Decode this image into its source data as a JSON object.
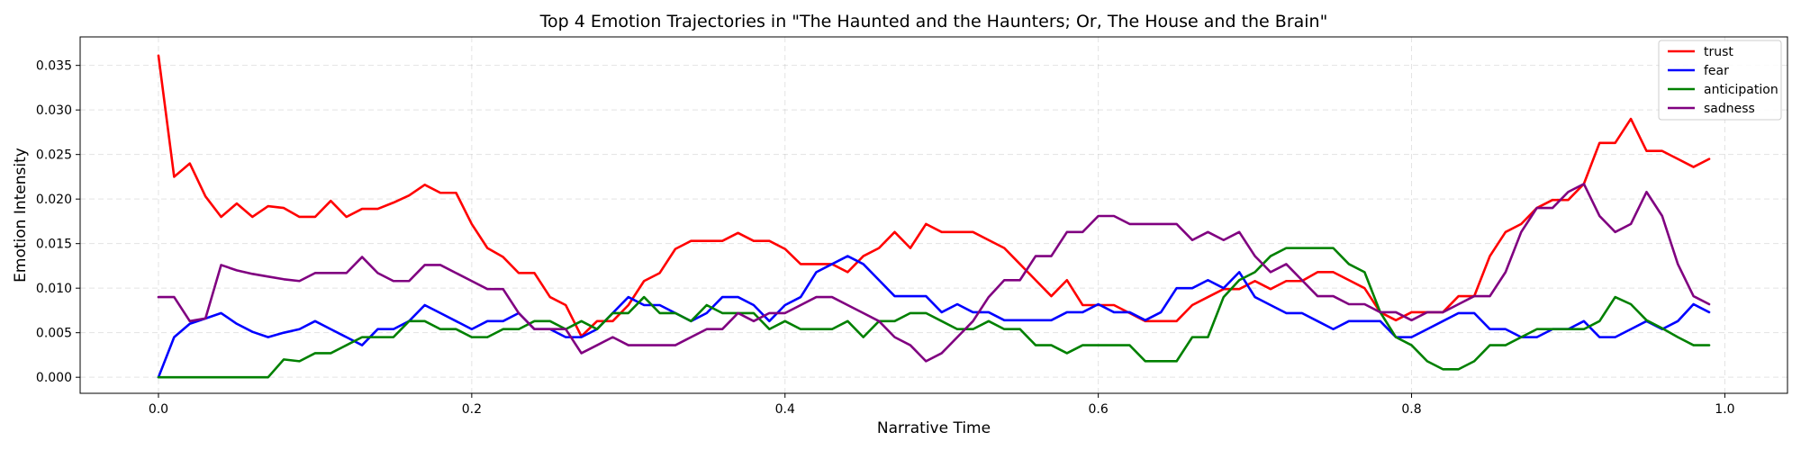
{
  "chart_data": {
    "type": "line",
    "title": "Top 4 Emotion Trajectories in \"The Haunted and the Haunters; Or, The House and the Brain\"",
    "xlabel": "Narrative Time",
    "ylabel": "Emotion Intensity",
    "xlim": [
      -0.05,
      1.04
    ],
    "ylim": [
      -0.0018,
      0.0382
    ],
    "xticks": [
      0.0,
      0.2,
      0.4,
      0.6,
      0.8,
      1.0
    ],
    "xtick_labels": [
      "0.0",
      "0.2",
      "0.4",
      "0.6",
      "0.8",
      "1.0"
    ],
    "yticks": [
      0.0,
      0.005,
      0.01,
      0.015,
      0.02,
      0.025,
      0.03,
      0.035
    ],
    "ytick_labels": [
      "0.000",
      "0.005",
      "0.010",
      "0.015",
      "0.020",
      "0.025",
      "0.030",
      "0.035"
    ],
    "grid": true,
    "legend_position": "top-right",
    "x": [
      0.0,
      0.01,
      0.02,
      0.03,
      0.04,
      0.05,
      0.06,
      0.07,
      0.08,
      0.09,
      0.1,
      0.11,
      0.12,
      0.13,
      0.14,
      0.15,
      0.16,
      0.17,
      0.18,
      0.19,
      0.2,
      0.21,
      0.22,
      0.23,
      0.24,
      0.25,
      0.26,
      0.27,
      0.28,
      0.29,
      0.3,
      0.31,
      0.32,
      0.33,
      0.34,
      0.35,
      0.36,
      0.37,
      0.38,
      0.39,
      0.4,
      0.41,
      0.42,
      0.43,
      0.44,
      0.45,
      0.46,
      0.47,
      0.48,
      0.49,
      0.5,
      0.51,
      0.52,
      0.53,
      0.54,
      0.55,
      0.56,
      0.57,
      0.58,
      0.59,
      0.6,
      0.61,
      0.62,
      0.63,
      0.64,
      0.65,
      0.66,
      0.67,
      0.68,
      0.69,
      0.7,
      0.71,
      0.72,
      0.73,
      0.74,
      0.75,
      0.76,
      0.77,
      0.78,
      0.79,
      0.8,
      0.81,
      0.82,
      0.83,
      0.84,
      0.85,
      0.86,
      0.87,
      0.88,
      0.89,
      0.9,
      0.91,
      0.92,
      0.93,
      0.94,
      0.95,
      0.96,
      0.97,
      0.98,
      0.99
    ],
    "series": [
      {
        "name": "trust",
        "color": "#ff0000",
        "values": [
          0.0361,
          0.0225,
          0.024,
          0.0203,
          0.018,
          0.0195,
          0.018,
          0.0192,
          0.019,
          0.018,
          0.018,
          0.0198,
          0.018,
          0.0189,
          0.0189,
          0.0196,
          0.0204,
          0.0216,
          0.0207,
          0.0207,
          0.0172,
          0.0145,
          0.0135,
          0.0117,
          0.0117,
          0.009,
          0.0081,
          0.0046,
          0.0063,
          0.0063,
          0.0081,
          0.0108,
          0.0117,
          0.0144,
          0.0153,
          0.0153,
          0.0153,
          0.0162,
          0.0153,
          0.0153,
          0.0144,
          0.0127,
          0.0127,
          0.0127,
          0.0118,
          0.0136,
          0.0145,
          0.0163,
          0.0145,
          0.0172,
          0.0163,
          0.0163,
          0.0163,
          0.0154,
          0.0145,
          0.0127,
          0.0109,
          0.0091,
          0.0109,
          0.0081,
          0.0081,
          0.0081,
          0.0072,
          0.0063,
          0.0063,
          0.0063,
          0.0081,
          0.009,
          0.0099,
          0.0099,
          0.0108,
          0.0099,
          0.0108,
          0.0108,
          0.0118,
          0.0118,
          0.0109,
          0.01,
          0.0073,
          0.0064,
          0.0073,
          0.0073,
          0.0073,
          0.0091,
          0.0091,
          0.0136,
          0.0163,
          0.0172,
          0.019,
          0.0199,
          0.0199,
          0.0217,
          0.0263,
          0.0263,
          0.029,
          0.0254,
          0.0254,
          0.0245,
          0.0236,
          0.0245
        ]
      },
      {
        "name": "fear",
        "color": "#0000ff",
        "values": [
          0.0,
          0.0045,
          0.006,
          0.0066,
          0.0072,
          0.006,
          0.0051,
          0.0045,
          0.005,
          0.0054,
          0.0063,
          0.0054,
          0.0045,
          0.0036,
          0.0054,
          0.0054,
          0.0063,
          0.0081,
          0.0072,
          0.0063,
          0.0054,
          0.0063,
          0.0063,
          0.0072,
          0.0054,
          0.0054,
          0.0045,
          0.0045,
          0.0054,
          0.0072,
          0.009,
          0.0081,
          0.0081,
          0.0072,
          0.0063,
          0.0072,
          0.009,
          0.009,
          0.0081,
          0.0063,
          0.0081,
          0.009,
          0.0118,
          0.0127,
          0.0136,
          0.0127,
          0.0109,
          0.0091,
          0.0091,
          0.0091,
          0.0073,
          0.0082,
          0.0073,
          0.0073,
          0.0064,
          0.0064,
          0.0064,
          0.0064,
          0.0073,
          0.0073,
          0.0082,
          0.0073,
          0.0073,
          0.0064,
          0.0073,
          0.01,
          0.01,
          0.0109,
          0.01,
          0.0118,
          0.009,
          0.0081,
          0.0072,
          0.0072,
          0.0063,
          0.0054,
          0.0063,
          0.0063,
          0.0063,
          0.0045,
          0.0045,
          0.0054,
          0.0063,
          0.0072,
          0.0072,
          0.0054,
          0.0054,
          0.0045,
          0.0045,
          0.0054,
          0.0054,
          0.0063,
          0.0045,
          0.0045,
          0.0054,
          0.0063,
          0.0054,
          0.0063,
          0.0082,
          0.0073
        ]
      },
      {
        "name": "anticipation",
        "color": "#008000",
        "values": [
          0.0,
          0.0,
          0.0,
          0.0,
          0.0,
          0.0,
          0.0,
          0.0,
          0.002,
          0.0018,
          0.0027,
          0.0027,
          0.0036,
          0.0045,
          0.0045,
          0.0045,
          0.0063,
          0.0063,
          0.0054,
          0.0054,
          0.0045,
          0.0045,
          0.0054,
          0.0054,
          0.0063,
          0.0063,
          0.0054,
          0.0063,
          0.0054,
          0.0072,
          0.0072,
          0.009,
          0.0072,
          0.0072,
          0.0063,
          0.0081,
          0.0072,
          0.0072,
          0.0072,
          0.0054,
          0.0063,
          0.0054,
          0.0054,
          0.0054,
          0.0063,
          0.0045,
          0.0063,
          0.0063,
          0.0072,
          0.0072,
          0.0063,
          0.0054,
          0.0054,
          0.0063,
          0.0054,
          0.0054,
          0.0036,
          0.0036,
          0.0027,
          0.0036,
          0.0036,
          0.0036,
          0.0036,
          0.0018,
          0.0018,
          0.0018,
          0.0045,
          0.0045,
          0.009,
          0.0109,
          0.0118,
          0.0136,
          0.0145,
          0.0145,
          0.0145,
          0.0145,
          0.0127,
          0.0118,
          0.0073,
          0.0045,
          0.0036,
          0.0018,
          0.0009,
          0.0009,
          0.0018,
          0.0036,
          0.0036,
          0.0045,
          0.0054,
          0.0054,
          0.0054,
          0.0054,
          0.0063,
          0.009,
          0.0082,
          0.0064,
          0.0055,
          0.0045,
          0.0036,
          0.0036
        ]
      },
      {
        "name": "sadness",
        "color": "#800080",
        "values": [
          0.009,
          0.009,
          0.0063,
          0.0066,
          0.0126,
          0.012,
          0.0116,
          0.0113,
          0.011,
          0.0108,
          0.0117,
          0.0117,
          0.0117,
          0.0135,
          0.0117,
          0.0108,
          0.0108,
          0.0126,
          0.0126,
          0.0117,
          0.0108,
          0.0099,
          0.0099,
          0.0072,
          0.0054,
          0.0054,
          0.0054,
          0.0027,
          0.0036,
          0.0045,
          0.0036,
          0.0036,
          0.0036,
          0.0036,
          0.0045,
          0.0054,
          0.0054,
          0.0072,
          0.0063,
          0.0072,
          0.0072,
          0.0081,
          0.009,
          0.009,
          0.0081,
          0.0072,
          0.0063,
          0.0045,
          0.0036,
          0.0018,
          0.0027,
          0.0045,
          0.0063,
          0.009,
          0.0109,
          0.0109,
          0.0136,
          0.0136,
          0.0163,
          0.0163,
          0.0181,
          0.0181,
          0.0172,
          0.0172,
          0.0172,
          0.0172,
          0.0154,
          0.0163,
          0.0154,
          0.0163,
          0.0136,
          0.0118,
          0.0127,
          0.0109,
          0.0091,
          0.0091,
          0.0082,
          0.0082,
          0.0073,
          0.0073,
          0.0064,
          0.0073,
          0.0073,
          0.0082,
          0.0091,
          0.0091,
          0.0118,
          0.0163,
          0.019,
          0.019,
          0.0208,
          0.0217,
          0.0181,
          0.0163,
          0.0172,
          0.0208,
          0.0181,
          0.0127,
          0.0091,
          0.0082
        ]
      }
    ]
  }
}
